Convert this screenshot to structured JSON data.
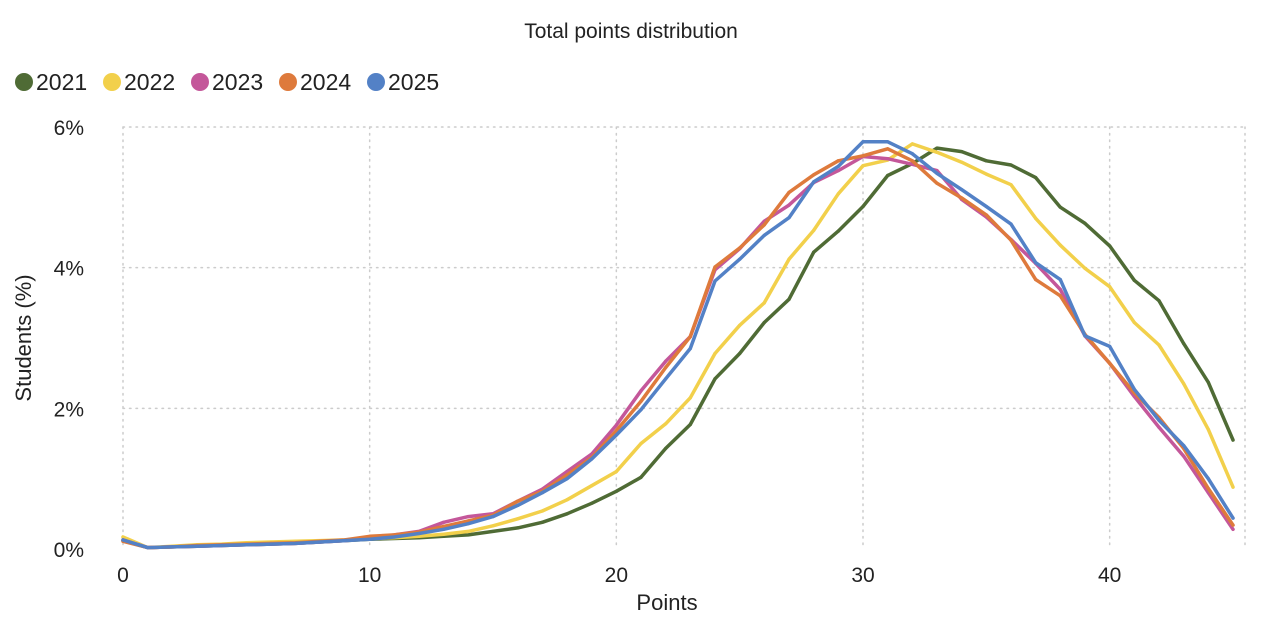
{
  "chart_data": {
    "type": "line",
    "title": "Total points distribution",
    "xlabel": "Points",
    "ylabel": "Students (%)",
    "xlim": [
      0,
      45
    ],
    "ylim": [
      0,
      6
    ],
    "x_ticks": [
      0,
      10,
      20,
      30,
      40
    ],
    "x_tick_labels": [
      "0",
      "10",
      "20",
      "30",
      "40"
    ],
    "y_ticks": [
      0,
      2,
      4,
      6
    ],
    "y_tick_labels": [
      "0%",
      "2%",
      "4%",
      "6%"
    ],
    "grid": true,
    "legend_position": "top-left",
    "x": [
      0,
      1,
      2,
      3,
      4,
      5,
      6,
      7,
      8,
      9,
      10,
      11,
      12,
      13,
      14,
      15,
      16,
      17,
      18,
      19,
      20,
      21,
      22,
      23,
      24,
      25,
      26,
      27,
      28,
      29,
      30,
      31,
      32,
      33,
      34,
      35,
      36,
      37,
      38,
      39,
      40,
      41,
      42,
      43,
      44,
      45
    ],
    "series": [
      {
        "name": "2021",
        "color": "#4f6b35",
        "values": [
          0.12,
          0.02,
          0.03,
          0.04,
          0.05,
          0.06,
          0.07,
          0.08,
          0.1,
          0.12,
          0.14,
          0.15,
          0.16,
          0.18,
          0.2,
          0.25,
          0.3,
          0.38,
          0.5,
          0.65,
          0.82,
          1.02,
          1.43,
          1.77,
          2.42,
          2.78,
          3.22,
          3.55,
          4.22,
          4.52,
          4.87,
          5.31,
          5.48,
          5.7,
          5.65,
          5.52,
          5.46,
          5.28,
          4.86,
          4.63,
          4.31,
          3.82,
          3.53,
          2.92,
          2.37,
          1.55
        ]
      },
      {
        "name": "2022",
        "color": "#f2d04b",
        "values": [
          0.17,
          0.02,
          0.04,
          0.06,
          0.07,
          0.09,
          0.1,
          0.11,
          0.12,
          0.13,
          0.15,
          0.16,
          0.18,
          0.21,
          0.25,
          0.33,
          0.43,
          0.54,
          0.7,
          0.9,
          1.1,
          1.5,
          1.78,
          2.15,
          2.78,
          3.18,
          3.5,
          4.12,
          4.53,
          5.05,
          5.45,
          5.53,
          5.76,
          5.64,
          5.5,
          5.33,
          5.18,
          4.7,
          4.32,
          3.99,
          3.73,
          3.22,
          2.9,
          2.35,
          1.7,
          0.88
        ]
      },
      {
        "name": "2023",
        "color": "#c4579a",
        "values": [
          0.13,
          0.02,
          0.03,
          0.04,
          0.05,
          0.06,
          0.07,
          0.08,
          0.1,
          0.12,
          0.15,
          0.2,
          0.25,
          0.38,
          0.46,
          0.5,
          0.68,
          0.85,
          1.1,
          1.35,
          1.76,
          2.25,
          2.67,
          3.02,
          3.97,
          4.27,
          4.66,
          4.89,
          5.21,
          5.38,
          5.58,
          5.55,
          5.47,
          5.38,
          4.97,
          4.72,
          4.4,
          4.06,
          3.69,
          3.03,
          2.64,
          2.17,
          1.73,
          1.32,
          0.8,
          0.28
        ]
      },
      {
        "name": "2024",
        "color": "#de7a3c",
        "values": [
          0.11,
          0.02,
          0.03,
          0.05,
          0.06,
          0.07,
          0.08,
          0.09,
          0.11,
          0.13,
          0.18,
          0.2,
          0.24,
          0.32,
          0.4,
          0.48,
          0.68,
          0.82,
          1.05,
          1.3,
          1.68,
          2.1,
          2.58,
          3.02,
          4.01,
          4.28,
          4.61,
          5.07,
          5.32,
          5.52,
          5.59,
          5.69,
          5.52,
          5.2,
          4.99,
          4.75,
          4.39,
          3.83,
          3.6,
          3.05,
          2.64,
          2.22,
          1.87,
          1.43,
          0.86,
          0.34
        ]
      },
      {
        "name": "2025",
        "color": "#5381c6",
        "values": [
          0.13,
          0.02,
          0.03,
          0.04,
          0.05,
          0.06,
          0.07,
          0.08,
          0.1,
          0.12,
          0.14,
          0.17,
          0.22,
          0.28,
          0.36,
          0.46,
          0.62,
          0.8,
          1.0,
          1.28,
          1.62,
          1.98,
          2.42,
          2.85,
          3.81,
          4.12,
          4.46,
          4.71,
          5.22,
          5.44,
          5.79,
          5.79,
          5.62,
          5.34,
          5.11,
          4.87,
          4.62,
          4.07,
          3.83,
          3.03,
          2.88,
          2.27,
          1.83,
          1.47,
          1.0,
          0.44
        ]
      }
    ]
  }
}
